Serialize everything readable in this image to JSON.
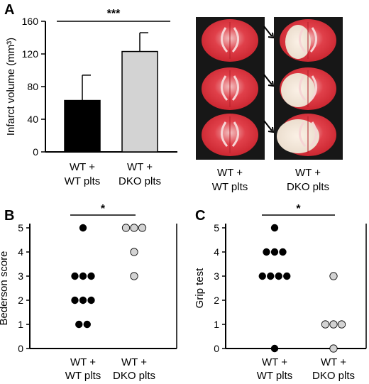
{
  "panels": {
    "a": "A",
    "b": "B",
    "c": "C"
  },
  "categories": [
    [
      "WT +",
      "WT plts"
    ],
    [
      "WT +",
      "DKO plts"
    ]
  ],
  "colors": {
    "wt": "#000000",
    "dko": "#d3d3d3",
    "edge": "#000000"
  },
  "images": {
    "tiles": [
      "brain-section",
      "brain-section",
      "brain-section",
      "brain-section",
      "brain-section",
      "brain-section"
    ],
    "arrows": [
      "arrow-icon",
      "arrow-icon",
      "arrow-icon"
    ],
    "labels": [
      [
        "WT +",
        "WT plts"
      ],
      [
        "WT +",
        "DKO plts"
      ]
    ]
  },
  "chart_data": [
    {
      "panel": "A",
      "type": "bar",
      "ylabel": "Infarct volume (mm³)",
      "yticks": [
        "0",
        "40",
        "80",
        "120",
        "160"
      ],
      "ylim": [
        0,
        160
      ],
      "series": [
        {
          "values": [
            63,
            123
          ],
          "errors": [
            31,
            23
          ]
        }
      ],
      "significance": "***"
    },
    {
      "panel": "B",
      "type": "scatter",
      "ylabel": "Bederson score",
      "yticks": [
        "0",
        "1",
        "2",
        "3",
        "4",
        "5"
      ],
      "ylim": [
        0,
        5
      ],
      "points": [
        {
          "group": 0,
          "values": [
            5,
            3,
            3,
            3,
            2,
            2,
            2,
            1,
            1
          ]
        },
        {
          "group": 1,
          "values": [
            5,
            5,
            5,
            4,
            3
          ]
        }
      ],
      "significance": "*"
    },
    {
      "panel": "C",
      "type": "scatter",
      "ylabel": "Grip test",
      "yticks": [
        "0",
        "1",
        "2",
        "3",
        "4",
        "5"
      ],
      "ylim": [
        0,
        5
      ],
      "points": [
        {
          "group": 0,
          "values": [
            5,
            4,
            4,
            4,
            3,
            3,
            3,
            3,
            0
          ]
        },
        {
          "group": 1,
          "values": [
            3,
            1,
            1,
            1,
            0
          ]
        }
      ],
      "significance": "*"
    }
  ]
}
